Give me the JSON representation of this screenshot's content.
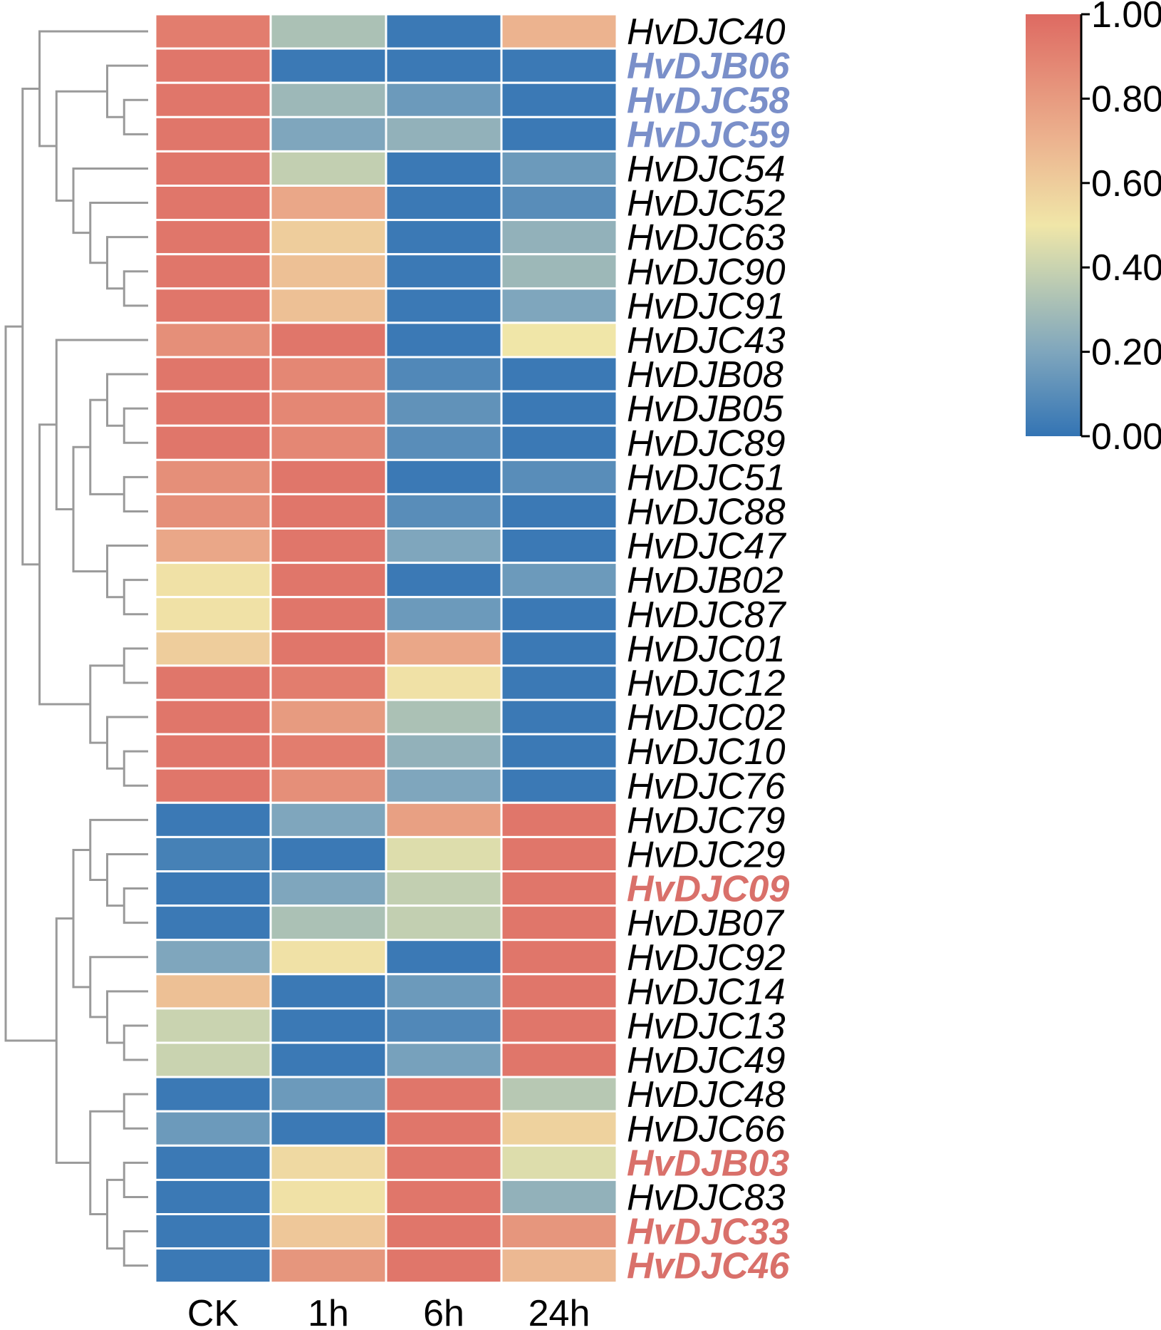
{
  "chart_data": {
    "type": "heatmap",
    "title": "",
    "columns": [
      "CK",
      "1h",
      "6h",
      "24h"
    ],
    "rows": [
      {
        "gene": "HvDJC40",
        "label_color": "black",
        "values": [
          0.92,
          0.32,
          0.02,
          0.7
        ]
      },
      {
        "gene": "HvDJB06",
        "label_color": "blue",
        "values": [
          0.95,
          0.02,
          0.02,
          0.02
        ]
      },
      {
        "gene": "HvDJC58",
        "label_color": "blue",
        "values": [
          0.95,
          0.28,
          0.15,
          0.02
        ]
      },
      {
        "gene": "HvDJC59",
        "label_color": "blue",
        "values": [
          0.95,
          0.2,
          0.25,
          0.02
        ]
      },
      {
        "gene": "HvDJC54",
        "label_color": "black",
        "values": [
          0.95,
          0.38,
          0.02,
          0.15
        ]
      },
      {
        "gene": "HvDJC52",
        "label_color": "black",
        "values": [
          0.95,
          0.75,
          0.02,
          0.1
        ]
      },
      {
        "gene": "HvDJC63",
        "label_color": "black",
        "values": [
          0.95,
          0.6,
          0.02,
          0.25
        ]
      },
      {
        "gene": "HvDJC90",
        "label_color": "black",
        "values": [
          0.95,
          0.65,
          0.02,
          0.28
        ]
      },
      {
        "gene": "HvDJC91",
        "label_color": "black",
        "values": [
          0.95,
          0.65,
          0.02,
          0.2
        ]
      },
      {
        "gene": "HvDJC43",
        "label_color": "black",
        "values": [
          0.85,
          0.95,
          0.02,
          0.5
        ]
      },
      {
        "gene": "HvDJB08",
        "label_color": "black",
        "values": [
          0.95,
          0.88,
          0.08,
          0.02
        ]
      },
      {
        "gene": "HvDJB05",
        "label_color": "black",
        "values": [
          0.95,
          0.88,
          0.12,
          0.02
        ]
      },
      {
        "gene": "HvDJC89",
        "label_color": "black",
        "values": [
          0.95,
          0.88,
          0.1,
          0.02
        ]
      },
      {
        "gene": "HvDJC51",
        "label_color": "black",
        "values": [
          0.85,
          0.95,
          0.02,
          0.1
        ]
      },
      {
        "gene": "HvDJC88",
        "label_color": "black",
        "values": [
          0.85,
          0.95,
          0.1,
          0.02
        ]
      },
      {
        "gene": "HvDJC47",
        "label_color": "black",
        "values": [
          0.75,
          0.95,
          0.2,
          0.02
        ]
      },
      {
        "gene": "HvDJB02",
        "label_color": "black",
        "values": [
          0.52,
          0.95,
          0.02,
          0.15
        ]
      },
      {
        "gene": "HvDJC87",
        "label_color": "black",
        "values": [
          0.52,
          0.95,
          0.15,
          0.02
        ]
      },
      {
        "gene": "HvDJC01",
        "label_color": "black",
        "values": [
          0.6,
          0.95,
          0.75,
          0.02
        ]
      },
      {
        "gene": "HvDJC12",
        "label_color": "black",
        "values": [
          0.95,
          0.92,
          0.52,
          0.02
        ]
      },
      {
        "gene": "HvDJC02",
        "label_color": "black",
        "values": [
          0.95,
          0.8,
          0.32,
          0.02
        ]
      },
      {
        "gene": "HvDJC10",
        "label_color": "black",
        "values": [
          0.95,
          0.92,
          0.25,
          0.02
        ]
      },
      {
        "gene": "HvDJC76",
        "label_color": "black",
        "values": [
          0.95,
          0.85,
          0.2,
          0.02
        ]
      },
      {
        "gene": "HvDJC79",
        "label_color": "black",
        "values": [
          0.02,
          0.2,
          0.78,
          0.95
        ]
      },
      {
        "gene": "HvDJC29",
        "label_color": "black",
        "values": [
          0.05,
          0.02,
          0.45,
          0.95
        ]
      },
      {
        "gene": "HvDJC09",
        "label_color": "red",
        "values": [
          0.02,
          0.2,
          0.38,
          0.95
        ]
      },
      {
        "gene": "HvDJB07",
        "label_color": "black",
        "values": [
          0.02,
          0.32,
          0.38,
          0.95
        ]
      },
      {
        "gene": "HvDJC92",
        "label_color": "black",
        "values": [
          0.2,
          0.52,
          0.02,
          0.95
        ]
      },
      {
        "gene": "HvDJC14",
        "label_color": "black",
        "values": [
          0.65,
          0.02,
          0.15,
          0.95
        ]
      },
      {
        "gene": "HvDJC13",
        "label_color": "black",
        "values": [
          0.4,
          0.02,
          0.08,
          0.95
        ]
      },
      {
        "gene": "HvDJC49",
        "label_color": "black",
        "values": [
          0.4,
          0.02,
          0.18,
          0.95
        ]
      },
      {
        "gene": "HvDJC48",
        "label_color": "black",
        "values": [
          0.02,
          0.15,
          0.95,
          0.35
        ]
      },
      {
        "gene": "HvDJC66",
        "label_color": "black",
        "values": [
          0.15,
          0.02,
          0.95,
          0.58
        ]
      },
      {
        "gene": "HvDJB03",
        "label_color": "red",
        "values": [
          0.02,
          0.55,
          0.95,
          0.45
        ]
      },
      {
        "gene": "HvDJC83",
        "label_color": "black",
        "values": [
          0.02,
          0.52,
          0.95,
          0.25
        ]
      },
      {
        "gene": "HvDJC33",
        "label_color": "red",
        "values": [
          0.02,
          0.62,
          0.95,
          0.82
        ]
      },
      {
        "gene": "HvDJC46",
        "label_color": "black_red",
        "values": [
          0.02,
          0.82,
          0.95,
          0.68
        ]
      }
    ],
    "colorbar": {
      "range": [
        0.0,
        1.0
      ],
      "tick_labels": [
        "0.00",
        "0.20",
        "0.40",
        "0.60",
        "0.80",
        "1.00"
      ],
      "stops": [
        {
          "v": 0.0,
          "c": "#3374b4"
        },
        {
          "v": 0.2,
          "c": "#7fa6bd"
        },
        {
          "v": 0.4,
          "c": "#c9d3b0"
        },
        {
          "v": 0.5,
          "c": "#f0e6a8"
        },
        {
          "v": 0.7,
          "c": "#ecb38f"
        },
        {
          "v": 1.0,
          "c": "#de6a62"
        }
      ]
    },
    "label_colors": {
      "black": "#000000",
      "blue": "#7a8fc9",
      "red": "#d9706a",
      "black_red": "#d9706a"
    },
    "dendrogram": {
      "linkage": [
        [
          "HvDJC58",
          "HvDJC59"
        ],
        [
          "HvDJB06",
          "HvDJC58+HvDJC59"
        ],
        [
          "HvDJC90",
          "HvDJC91"
        ],
        [
          "HvDJC63",
          "HvDJC90+HvDJC91"
        ],
        [
          "HvDJC52",
          "HvDJC63+HvDJC90+HvDJC91"
        ],
        [
          "HvDJC54",
          "HvDJC52..HvDJC91"
        ],
        [
          "HvDJB06..HvDJC59",
          "HvDJC54..HvDJC91"
        ],
        [
          "HvDJC40",
          "HvDJB06..HvDJC91"
        ],
        [
          "HvDJB05",
          "HvDJC89"
        ],
        [
          "HvDJB08",
          "HvDJB05+HvDJC89"
        ],
        [
          "HvDJC51",
          "HvDJC88"
        ],
        [
          "HvDJB08..HvDJC89",
          "HvDJC51+HvDJC88"
        ],
        [
          "HvDJB02",
          "HvDJC87"
        ],
        [
          "HvDJC47",
          "HvDJB02+HvDJC87"
        ],
        [
          "HvDJB08..HvDJC88",
          "HvDJC47..HvDJC87"
        ],
        [
          "HvDJC43",
          "HvDJB08..HvDJC87"
        ],
        [
          "HvDJC01",
          "HvDJC12"
        ],
        [
          "HvDJC10",
          "HvDJC76"
        ],
        [
          "HvDJC02",
          "HvDJC10+HvDJC76"
        ],
        [
          "HvDJC01+HvDJC12",
          "HvDJC02..HvDJC76"
        ],
        [
          "HvDJC43..HvDJC87",
          "HvDJC01..HvDJC76"
        ],
        [
          "HvDJC40..HvDJC91",
          "HvDJC43..HvDJC76"
        ],
        [
          "HvDJC09",
          "HvDJB07"
        ],
        [
          "HvDJC29",
          "HvDJC09+HvDJB07"
        ],
        [
          "HvDJC79",
          "HvDJC29..HvDJB07"
        ],
        [
          "HvDJC13",
          "HvDJC49"
        ],
        [
          "HvDJC14",
          "HvDJC13+HvDJC49"
        ],
        [
          "HvDJC92",
          "HvDJC14..HvDJC49"
        ],
        [
          "HvDJC79..HvDJB07",
          "HvDJC92..HvDJC49"
        ],
        [
          "HvDJC48",
          "HvDJC66"
        ],
        [
          "HvDJB03",
          "HvDJC83"
        ],
        [
          "HvDJC33",
          "HvDJC46"
        ],
        [
          "HvDJB03+HvDJC83",
          "HvDJC33+HvDJC46"
        ],
        [
          "HvDJC48+HvDJC66",
          "HvDJB03..HvDJC46"
        ],
        [
          "HvDJC79..HvDJC49",
          "HvDJC48..HvDJC46"
        ],
        [
          "HvDJC40..HvDJC76",
          "HvDJC79..HvDJC46"
        ]
      ]
    }
  }
}
